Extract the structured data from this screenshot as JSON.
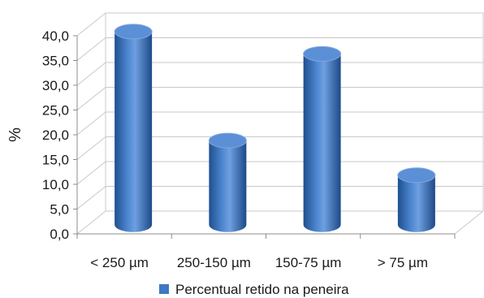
{
  "chart_data": {
    "type": "bar",
    "style": "3d-cylinder",
    "categories": [
      "< 250 µm",
      "250-150 µm",
      "150-75 µm",
      "> 75 µm"
    ],
    "series": [
      {
        "name": "Percentual retido na peneira",
        "values": [
          39.0,
          17.0,
          34.5,
          10.0
        ],
        "color": "#3f78c4"
      }
    ],
    "ylabel": "%",
    "ylim": [
      0,
      40
    ],
    "ytick_step": 5,
    "ytick_labels": [
      "0,0",
      "5,0",
      "10,0",
      "15,0",
      "20,0",
      "25,0",
      "30,0",
      "35,0",
      "40,0"
    ],
    "grid": true,
    "legend_position": "bottom"
  },
  "colors": {
    "bar_main": "#3f78c4",
    "bar_dark": "#1f4f8f",
    "bar_light": "#7fa8e0",
    "bar_top": "#5b8fd6",
    "grid": "#c8c8c8",
    "axis": "#8c8c8c"
  }
}
